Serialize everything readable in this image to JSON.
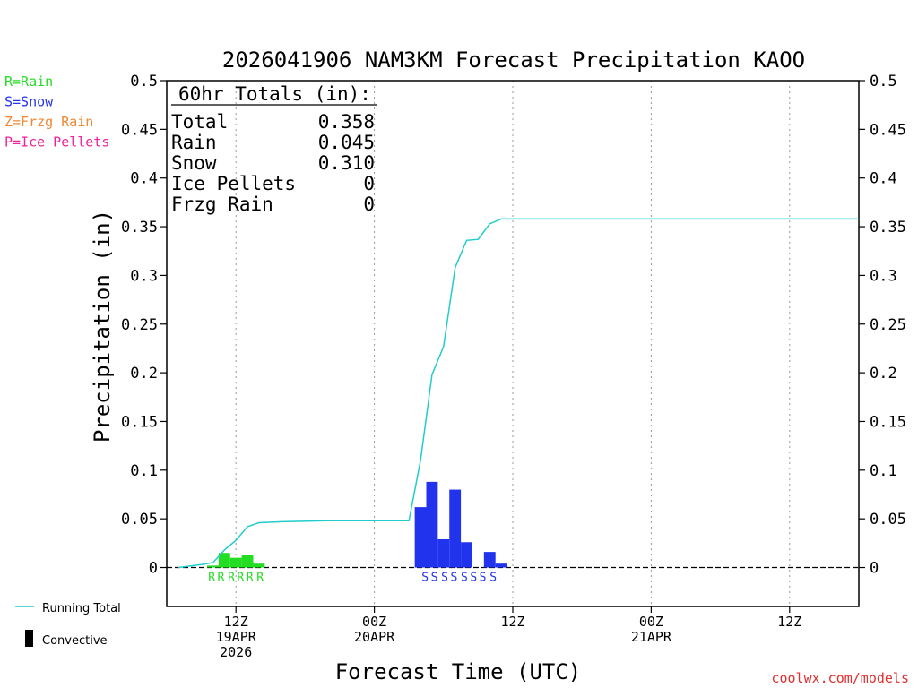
{
  "chart_data": {
    "type": "bar",
    "title": "2026041906 NAM3KM Forecast Precipitation KAOO",
    "xlabel": "Forecast Time (UTC)",
    "ylabel": "Precipitation (in)",
    "ylim": [
      -0.04,
      0.5
    ],
    "yticks": [
      0,
      0.05,
      0.1,
      0.15,
      0.2,
      0.25,
      0.3,
      0.35,
      0.4,
      0.45,
      0.5
    ],
    "ytick_labels": [
      "0",
      "0.05",
      "0.1",
      "0.15",
      "0.2",
      "0.25",
      "0.3",
      "0.35",
      "0.4",
      "0.45",
      "0.5"
    ],
    "xlim": [
      6,
      66
    ],
    "grid": "vertical-dotted",
    "xticks": [
      {
        "x": 12,
        "lines": [
          "12Z",
          "19APR",
          "2026"
        ]
      },
      {
        "x": 24,
        "lines": [
          "00Z",
          "20APR"
        ]
      },
      {
        "x": 36,
        "lines": [
          "12Z"
        ]
      },
      {
        "x": 48,
        "lines": [
          "00Z",
          "21APR"
        ]
      },
      {
        "x": 60,
        "lines": [
          "12Z"
        ]
      }
    ],
    "totals": {
      "heading": "60hr Totals (in):",
      "rows": [
        {
          "label": "Total",
          "value": "0.358"
        },
        {
          "label": "Rain",
          "value": "0.045"
        },
        {
          "label": "Snow",
          "value": "0.310"
        },
        {
          "label": "Ice Pellets",
          "value": "0"
        },
        {
          "label": "Frzg Rain",
          "value": "0"
        }
      ]
    },
    "ptype_legend": [
      {
        "label": "R=Rain",
        "color": "#22dd22"
      },
      {
        "label": "S=Snow",
        "color": "#2233ee"
      },
      {
        "label": "Z=Frzg Rain",
        "color": "#ee8833"
      },
      {
        "label": "P=Ice Pellets",
        "color": "#ee2299"
      }
    ],
    "series_legend": [
      {
        "label": "Running Total",
        "kind": "line",
        "color": "#22cccc"
      },
      {
        "label": "Convective",
        "kind": "bar",
        "color": "#000000"
      }
    ],
    "bars": [
      {
        "x": 10,
        "value": 0.002,
        "type": "R"
      },
      {
        "x": 11,
        "value": 0.015,
        "type": "R"
      },
      {
        "x": 12,
        "value": 0.01,
        "type": "R"
      },
      {
        "x": 13,
        "value": 0.013,
        "type": "R"
      },
      {
        "x": 14,
        "value": 0.004,
        "type": "R"
      },
      {
        "x": 28,
        "value": 0.062,
        "type": "S"
      },
      {
        "x": 29,
        "value": 0.088,
        "type": "S"
      },
      {
        "x": 30,
        "value": 0.029,
        "type": "S"
      },
      {
        "x": 31,
        "value": 0.08,
        "type": "S"
      },
      {
        "x": 32,
        "value": 0.026,
        "type": "S"
      },
      {
        "x": 34,
        "value": 0.016,
        "type": "S"
      },
      {
        "x": 35,
        "value": 0.004,
        "type": "S"
      }
    ],
    "ptype_markers": [
      {
        "x": 9.9,
        "type": "R"
      },
      {
        "x": 10.7,
        "type": "R"
      },
      {
        "x": 11.6,
        "type": "R"
      },
      {
        "x": 12.4,
        "type": "R"
      },
      {
        "x": 13.2,
        "type": "R"
      },
      {
        "x": 14.1,
        "type": "R"
      },
      {
        "x": 28.4,
        "type": "S"
      },
      {
        "x": 29.2,
        "type": "S"
      },
      {
        "x": 30.1,
        "type": "S"
      },
      {
        "x": 30.9,
        "type": "S"
      },
      {
        "x": 31.8,
        "type": "S"
      },
      {
        "x": 32.6,
        "type": "S"
      },
      {
        "x": 33.4,
        "type": "S"
      },
      {
        "x": 34.3,
        "type": "S"
      }
    ],
    "running_total": [
      [
        7,
        0.0
      ],
      [
        9,
        0.003
      ],
      [
        10,
        0.005
      ],
      [
        11,
        0.018
      ],
      [
        12,
        0.028
      ],
      [
        13,
        0.042
      ],
      [
        14,
        0.046
      ],
      [
        16,
        0.047
      ],
      [
        20,
        0.048
      ],
      [
        24,
        0.048
      ],
      [
        27,
        0.048
      ],
      [
        28,
        0.11
      ],
      [
        29,
        0.198
      ],
      [
        30,
        0.227
      ],
      [
        31,
        0.308
      ],
      [
        32,
        0.336
      ],
      [
        33,
        0.337
      ],
      [
        34,
        0.353
      ],
      [
        35,
        0.358
      ],
      [
        66,
        0.358
      ]
    ],
    "zero_line": "dashed"
  },
  "footer": {
    "credit": "coolwx.com/models"
  }
}
